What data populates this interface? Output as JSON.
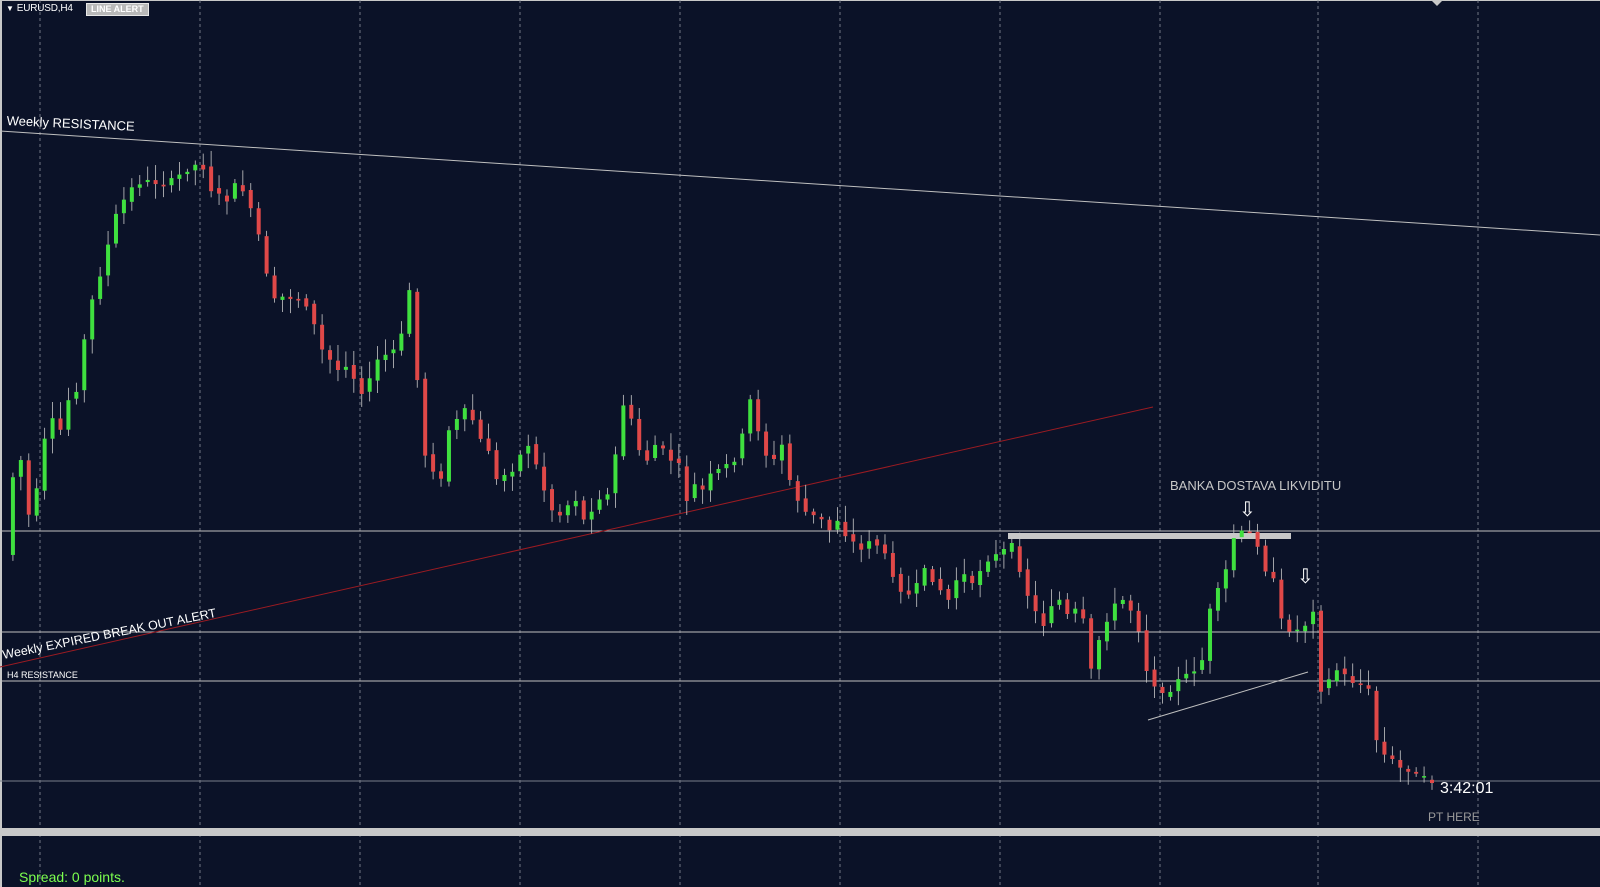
{
  "window": {
    "symbol": "EURUSD,H4",
    "indicator_badge": "LINE ALERT",
    "menu_icon": "triangle-down-icon"
  },
  "annotations": {
    "weekly_resistance": "Weekly RESISTANCE",
    "weekly_expired": "Weekly EXPIRED BREAK OUT ALERT",
    "h4_resistance": "H4 RESISTANCE",
    "banka": "BANKA DOSTAVA LIKVIDITU",
    "pt_here": "PT HERE"
  },
  "status": {
    "candle_timer": "3:42:01",
    "spread": "Spread: 0 points."
  },
  "colors": {
    "background": "#0b1228",
    "bull": "#3fe03f",
    "bear": "#e04848",
    "wick": "#c8c8c8",
    "grid": "#8a8f9c",
    "trendline_red": "#9b1b22",
    "level_line": "#c0c0c0",
    "spread_text": "#7cff4f"
  },
  "icons": [
    "triangle-down-icon",
    "down-arrow-icon"
  ],
  "chart_data": {
    "type": "candlestick",
    "symbol": "EURUSD",
    "timeframe": "H4",
    "ohlc_points": [
      555,
      477,
      460,
      515,
      490,
      440,
      420,
      430,
      400,
      390,
      340,
      300,
      275,
      245,
      215,
      200,
      188,
      183,
      181,
      183,
      185,
      180,
      175,
      170,
      165,
      168,
      190,
      195,
      200,
      185,
      190,
      210,
      235,
      275,
      300,
      297,
      298,
      300,
      305,
      325,
      350,
      360,
      370,
      365,
      378,
      392,
      380,
      360,
      355,
      350,
      335,
      290,
      380,
      455,
      470,
      480,
      430,
      420,
      410,
      420,
      440,
      450,
      480,
      475,
      470,
      455,
      445,
      465,
      490,
      510,
      515,
      505,
      500,
      520,
      510,
      498,
      495,
      455,
      405,
      420,
      450,
      460,
      445,
      450,
      460,
      465,
      500,
      485,
      490,
      475,
      470,
      465,
      460,
      435,
      400,
      430,
      455,
      460,
      445,
      480,
      500,
      512,
      516,
      520,
      530,
      520,
      535,
      542,
      550,
      540,
      545,
      555,
      575,
      590,
      595,
      585,
      570,
      580,
      590,
      600,
      580,
      575,
      585,
      570,
      560,
      555,
      550,
      545,
      570,
      595,
      612,
      625,
      605,
      600,
      615,
      610,
      620,
      670,
      640,
      620,
      605,
      600,
      610,
      630,
      670,
      685,
      695,
      690,
      680,
      675,
      670,
      660,
      610,
      590,
      570,
      538,
      532,
      533,
      545,
      570,
      580,
      620,
      630,
      630,
      625,
      610,
      690,
      680,
      670,
      675,
      682,
      685,
      690,
      740,
      755,
      760,
      768,
      770,
      775,
      778,
      782
    ]
  }
}
